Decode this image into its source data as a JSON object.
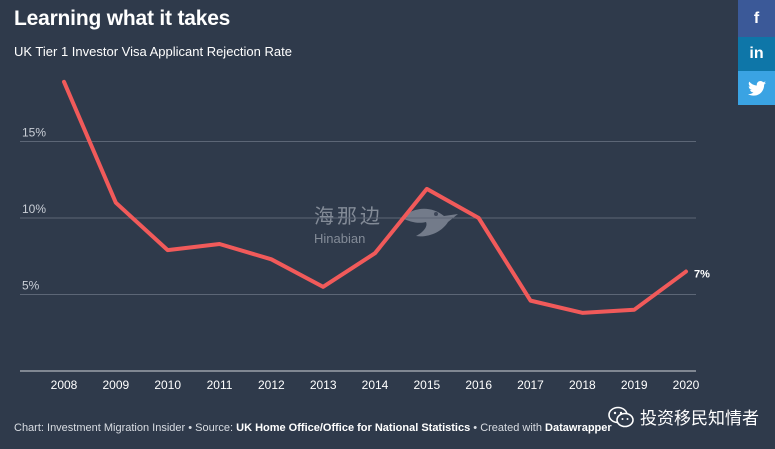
{
  "header": {
    "title": "Learning what it takes",
    "subtitle": "UK Tier 1 Investor Visa Applicant Rejection Rate"
  },
  "share": {
    "facebook": "f",
    "linkedin": "in",
    "twitter_icon": "twitter-bird"
  },
  "colors": {
    "background": "#2f3a4b",
    "line": "#f15a5a",
    "grid": "#5c6676"
  },
  "chart_data": {
    "type": "line",
    "title": "Learning what it takes",
    "subtitle": "UK Tier 1 Investor Visa Applicant Rejection Rate",
    "xlabel": "",
    "ylabel": "",
    "x": [
      "2008",
      "2009",
      "2010",
      "2011",
      "2012",
      "2013",
      "2014",
      "2015",
      "2016",
      "2017",
      "2018",
      "2019",
      "2020"
    ],
    "series": [
      {
        "name": "Rejection rate",
        "values": [
          18.9,
          11.0,
          7.9,
          8.3,
          7.3,
          5.5,
          7.7,
          11.9,
          10.0,
          4.6,
          3.8,
          4.0,
          6.5
        ]
      }
    ],
    "yticks": [
      5,
      10,
      15
    ],
    "ytick_labels": [
      "5%",
      "10%",
      "15%"
    ],
    "ylim": [
      0,
      20
    ],
    "end_label": "7%",
    "grid": true
  },
  "watermark": {
    "cn": "海那边",
    "en": "Hinabian"
  },
  "footer": {
    "prefix": "Chart: Investment Migration Insider • Source: ",
    "source": "UK Home Office/Office for National Statistics",
    "middle": " • Created with ",
    "tool": "Datawrapper"
  },
  "wechat": {
    "account": "投资移民知情者"
  }
}
